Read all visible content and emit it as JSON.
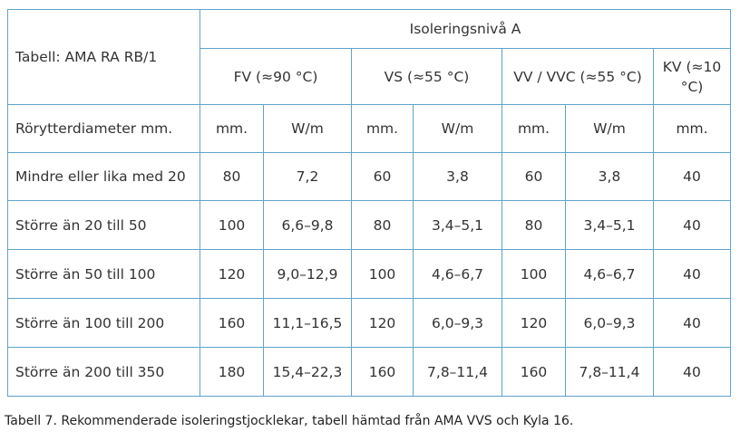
{
  "table": {
    "corner": "Tabell: AMA RA RB/1",
    "group_header": "Isoleringsnivå A",
    "column_groups": [
      "FV (≈90 °C)",
      "VS (≈55 °C)",
      "VV / VVC (≈55 °C)",
      "KV (≈10 °C)"
    ],
    "units_row": [
      "Rörytterdiameter mm.",
      "mm.",
      "W/m",
      "mm.",
      "W/m",
      "mm.",
      "W/m",
      "mm."
    ],
    "rows": [
      [
        "Mindre eller lika med 20",
        "80",
        "7,2",
        "60",
        "3,8",
        "60",
        "3,8",
        "40"
      ],
      [
        "Större än 20 till 50",
        "100",
        "6,6–9,8",
        "80",
        "3,4–5,1",
        "80",
        "3,4–5,1",
        "40"
      ],
      [
        "Större än 50 till 100",
        "120",
        "9,0–12,9",
        "100",
        "4,6–6,7",
        "100",
        "4,6–6,7",
        "40"
      ],
      [
        "Större än 100 till 200",
        "160",
        "11,1–16,5",
        "120",
        "6,0–9,3",
        "120",
        "6,0–9,3",
        "40"
      ],
      [
        "Större än 200 till 350",
        "180",
        "15,4–22,3",
        "160",
        "7,8–11,4",
        "160",
        "7,8–11,4",
        "40"
      ]
    ]
  },
  "caption": "Tabell  7. Rekommenderade isoleringstjocklekar, tabell hämtad från AMA VVS och Kyla 16."
}
